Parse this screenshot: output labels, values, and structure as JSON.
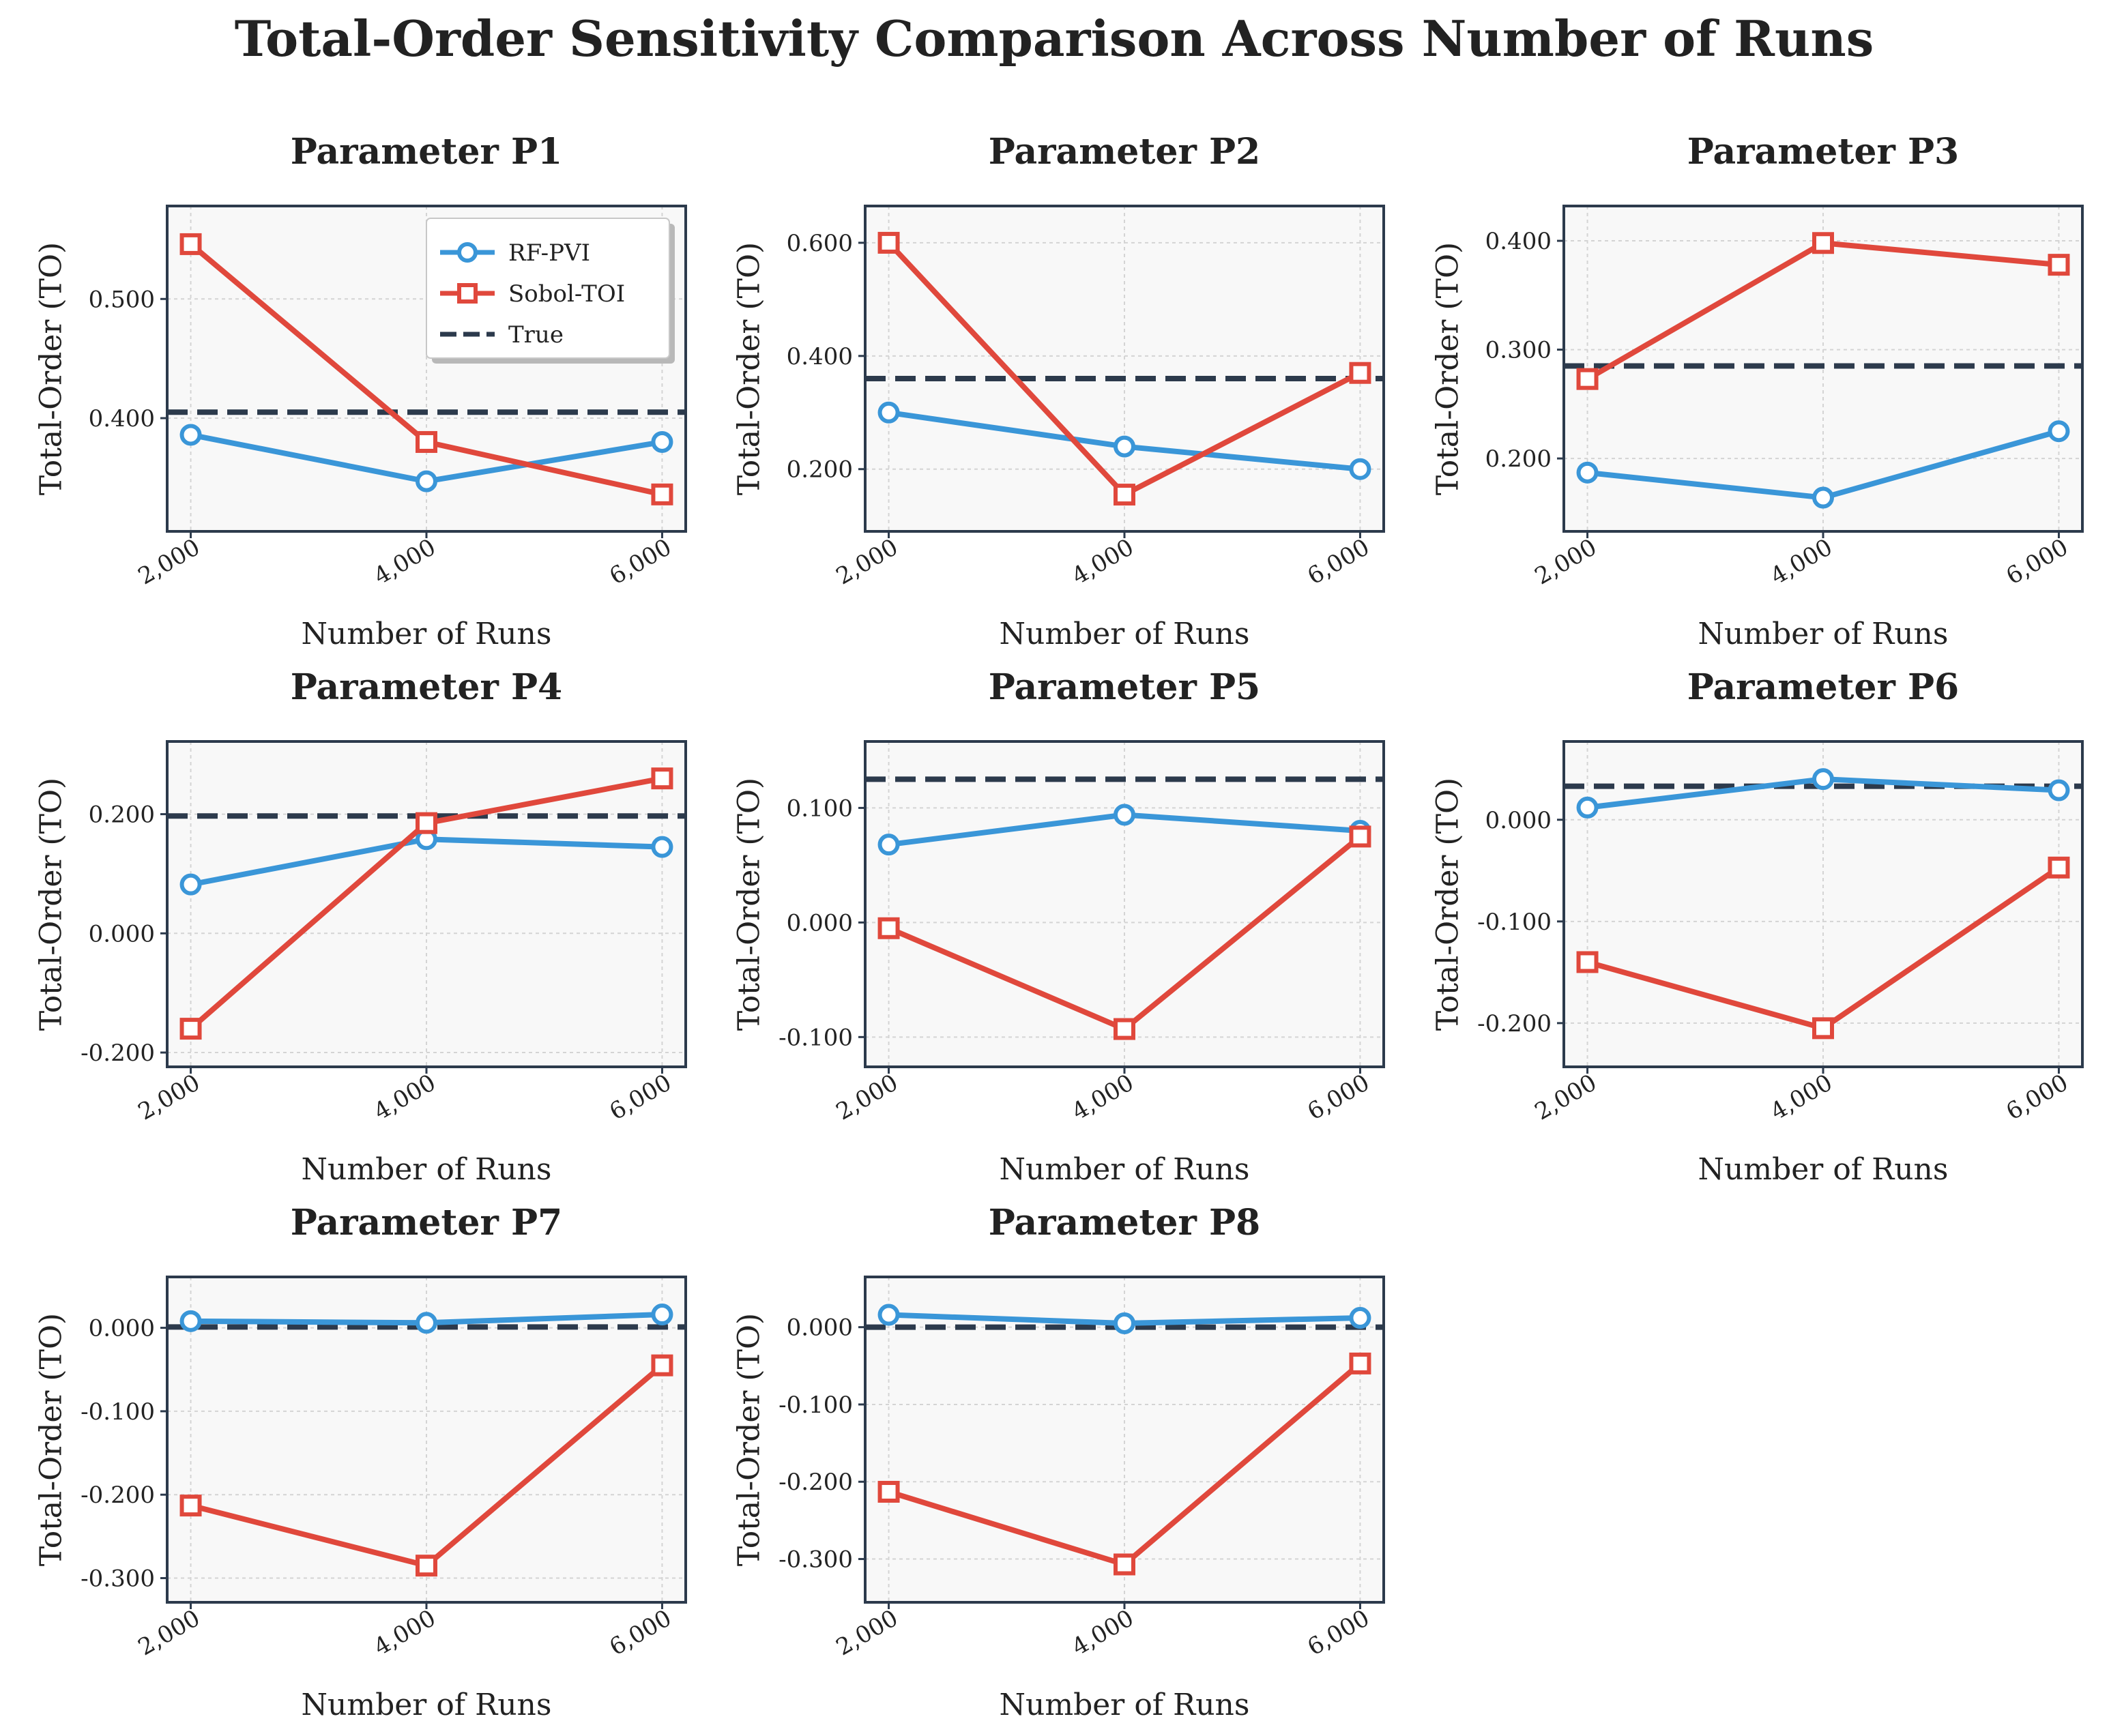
{
  "figure": {
    "title": "Total-Order Sensitivity Comparison Across Number of Runs"
  },
  "legend": {
    "placement": "upper-right of Parameter P1",
    "entries": [
      "RF-PVI",
      "Sobol-TOI",
      "True"
    ]
  },
  "colors": {
    "rf_pvi": "#3a96d8",
    "sobol_toi": "#e0483c",
    "true_line": "#2c3a4c",
    "panel_bg": "#f8f8f8",
    "frame": "#2c3a4c",
    "grid": "#d4d4d4"
  },
  "chart_data": [
    {
      "type": "line",
      "title": "Parameter P1",
      "xlabel": "Number of Runs",
      "ylabel": "Total-Order (TO)",
      "x": [
        2000,
        4000,
        6000
      ],
      "xlim": [
        1800,
        6200
      ],
      "ylim": [
        0.305,
        0.578
      ],
      "yticks": [
        0.4,
        0.5
      ],
      "ytick_labels": [
        "0.400",
        "0.500"
      ],
      "xtick_labels": [
        "2,000",
        "4,000",
        "6,000"
      ],
      "grid": true,
      "series": [
        {
          "name": "RF-PVI",
          "marker": "circle",
          "values": [
            0.386,
            0.347,
            0.38
          ]
        },
        {
          "name": "Sobol-TOI",
          "marker": "square",
          "values": [
            0.546,
            0.38,
            0.336
          ]
        }
      ],
      "true_value": 0.405
    },
    {
      "type": "line",
      "title": "Parameter P2",
      "xlabel": "Number of Runs",
      "ylabel": "Total-Order (TO)",
      "x": [
        2000,
        4000,
        6000
      ],
      "xlim": [
        1800,
        6200
      ],
      "ylim": [
        0.09,
        0.665
      ],
      "yticks": [
        0.2,
        0.4,
        0.6
      ],
      "ytick_labels": [
        "0.200",
        "0.400",
        "0.600"
      ],
      "xtick_labels": [
        "2,000",
        "4,000",
        "6,000"
      ],
      "grid": true,
      "series": [
        {
          "name": "RF-PVI",
          "marker": "circle",
          "values": [
            0.3,
            0.24,
            0.2
          ]
        },
        {
          "name": "Sobol-TOI",
          "marker": "square",
          "values": [
            0.6,
            0.155,
            0.37
          ]
        }
      ],
      "true_value": 0.36
    },
    {
      "type": "line",
      "title": "Parameter P3",
      "xlabel": "Number of Runs",
      "ylabel": "Total-Order (TO)",
      "x": [
        2000,
        4000,
        6000
      ],
      "xlim": [
        1800,
        6200
      ],
      "ylim": [
        0.133,
        0.432
      ],
      "yticks": [
        0.2,
        0.3,
        0.4
      ],
      "ytick_labels": [
        "0.200",
        "0.300",
        "0.400"
      ],
      "xtick_labels": [
        "2,000",
        "4,000",
        "6,000"
      ],
      "grid": true,
      "series": [
        {
          "name": "RF-PVI",
          "marker": "circle",
          "values": [
            0.187,
            0.164,
            0.225
          ]
        },
        {
          "name": "Sobol-TOI",
          "marker": "square",
          "values": [
            0.273,
            0.398,
            0.378
          ]
        }
      ],
      "true_value": 0.285
    },
    {
      "type": "line",
      "title": "Parameter P4",
      "xlabel": "Number of Runs",
      "ylabel": "Total-Order (TO)",
      "x": [
        2000,
        4000,
        6000
      ],
      "xlim": [
        1800,
        6200
      ],
      "ylim": [
        -0.224,
        0.322
      ],
      "yticks": [
        -0.2,
        0.0,
        0.2
      ],
      "ytick_labels": [
        "-0.200",
        "0.000",
        "0.200"
      ],
      "xtick_labels": [
        "2,000",
        "4,000",
        "6,000"
      ],
      "grid": true,
      "series": [
        {
          "name": "RF-PVI",
          "marker": "circle",
          "values": [
            0.082,
            0.158,
            0.145
          ]
        },
        {
          "name": "Sobol-TOI",
          "marker": "square",
          "values": [
            -0.16,
            0.185,
            0.26
          ]
        }
      ],
      "true_value": 0.197
    },
    {
      "type": "line",
      "title": "Parameter P5",
      "xlabel": "Number of Runs",
      "ylabel": "Total-Order (TO)",
      "x": [
        2000,
        4000,
        6000
      ],
      "xlim": [
        1800,
        6200
      ],
      "ylim": [
        -0.126,
        0.158
      ],
      "yticks": [
        -0.1,
        0.0,
        0.1
      ],
      "ytick_labels": [
        "-0.100",
        "0.000",
        "0.100"
      ],
      "xtick_labels": [
        "2,000",
        "4,000",
        "6,000"
      ],
      "grid": true,
      "series": [
        {
          "name": "RF-PVI",
          "marker": "circle",
          "values": [
            0.068,
            0.094,
            0.08
          ]
        },
        {
          "name": "Sobol-TOI",
          "marker": "square",
          "values": [
            -0.005,
            -0.093,
            0.075
          ]
        }
      ],
      "true_value": 0.125
    },
    {
      "type": "line",
      "title": "Parameter P6",
      "xlabel": "Number of Runs",
      "ylabel": "Total-Order (TO)",
      "x": [
        2000,
        4000,
        6000
      ],
      "xlim": [
        1800,
        6200
      ],
      "ylim": [
        -0.243,
        0.077
      ],
      "yticks": [
        -0.2,
        -0.1,
        0.0
      ],
      "ytick_labels": [
        "-0.200",
        "-0.100",
        "0.000"
      ],
      "xtick_labels": [
        "2,000",
        "4,000",
        "6,000"
      ],
      "grid": true,
      "series": [
        {
          "name": "RF-PVI",
          "marker": "circle",
          "values": [
            0.012,
            0.04,
            0.029
          ]
        },
        {
          "name": "Sobol-TOI",
          "marker": "square",
          "values": [
            -0.14,
            -0.205,
            -0.047
          ]
        }
      ],
      "true_value": 0.033
    },
    {
      "type": "line",
      "title": "Parameter P7",
      "xlabel": "Number of Runs",
      "ylabel": "Total-Order (TO)",
      "x": [
        2000,
        4000,
        6000
      ],
      "xlim": [
        1800,
        6200
      ],
      "ylim": [
        -0.329,
        0.061
      ],
      "yticks": [
        -0.3,
        -0.2,
        -0.1,
        0.0
      ],
      "ytick_labels": [
        "-0.300",
        "-0.200",
        "-0.100",
        "0.000"
      ],
      "xtick_labels": [
        "2,000",
        "4,000",
        "6,000"
      ],
      "grid": true,
      "series": [
        {
          "name": "RF-PVI",
          "marker": "circle",
          "values": [
            0.008,
            0.006,
            0.016
          ]
        },
        {
          "name": "Sobol-TOI",
          "marker": "square",
          "values": [
            -0.213,
            -0.285,
            -0.045
          ]
        }
      ],
      "true_value": 0.001
    },
    {
      "type": "line",
      "title": "Parameter P8",
      "xlabel": "Number of Runs",
      "ylabel": "Total-Order (TO)",
      "x": [
        2000,
        4000,
        6000
      ],
      "xlim": [
        1800,
        6200
      ],
      "ylim": [
        -0.356,
        0.065
      ],
      "yticks": [
        -0.3,
        -0.2,
        -0.1,
        0.0
      ],
      "ytick_labels": [
        "-0.300",
        "-0.200",
        "-0.100",
        "0.000"
      ],
      "xtick_labels": [
        "2,000",
        "4,000",
        "6,000"
      ],
      "grid": true,
      "series": [
        {
          "name": "RF-PVI",
          "marker": "circle",
          "values": [
            0.016,
            0.005,
            0.012
          ]
        },
        {
          "name": "Sobol-TOI",
          "marker": "square",
          "values": [
            -0.213,
            -0.307,
            -0.047
          ]
        }
      ],
      "true_value": 0.0
    }
  ]
}
